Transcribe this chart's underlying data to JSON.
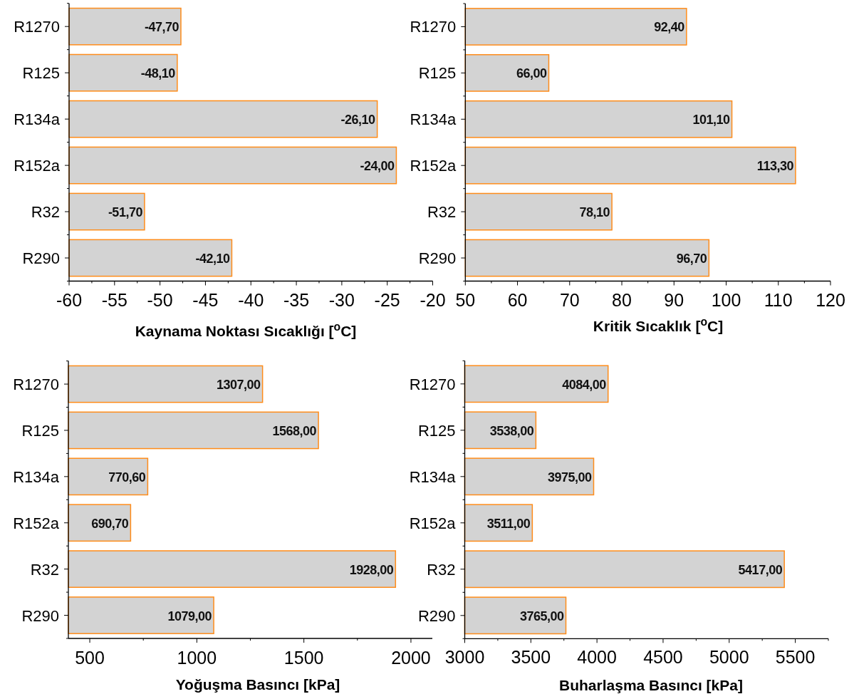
{
  "chart_data": [
    {
      "type": "bar",
      "orientation": "horizontal",
      "categories": [
        "R1270",
        "R125",
        "R134a",
        "R152a",
        "R32",
        "R290"
      ],
      "base": [
        -60,
        -60,
        -60,
        -60,
        -60,
        -60
      ],
      "values": [
        12.3,
        11.9,
        33.9,
        36.0,
        8.3,
        17.9
      ],
      "value_labels": [
        "-47,70",
        "-48,10",
        "-26,10",
        "-24,00",
        "-51,70",
        "-42,10"
      ],
      "color": "#d3d3d3",
      "xlabel": "Kaynama Noktası Sıcaklığı [$^{o}$C]",
      "xlim": [
        -60,
        -20
      ],
      "xticks": [
        -60,
        {
          "value": -57.5,
          "label": null
        },
        -55,
        {
          "value": -52.5,
          "label": null
        },
        -50,
        {
          "value": -47.5,
          "label": null
        },
        -45,
        {
          "value": -42.5,
          "label": null
        },
        -40,
        {
          "value": -37.5,
          "label": null
        },
        -35,
        {
          "value": -32.5,
          "label": null
        },
        -30,
        {
          "value": -27.5,
          "label": null
        },
        -25,
        {
          "value": -22.5,
          "label": null
        },
        -20
      ]
    },
    {
      "type": "bar",
      "orientation": "horizontal",
      "categories": [
        "R1270",
        "R125",
        "R134a",
        "R152a",
        "R32",
        "R290"
      ],
      "values": [
        92.4,
        66.0,
        101.1,
        113.3,
        78.1,
        96.7
      ],
      "value_labels": [
        "92,40",
        "66,00",
        "101,10",
        "113,30",
        "78,10",
        "96,70"
      ],
      "color": "#d3d3d3",
      "xlabel": "Kritik Sıcaklık [$^{o}$C]",
      "xlim": [
        50,
        120
      ],
      "xticks": [
        50,
        {
          "value": 55,
          "label": null
        },
        60,
        {
          "value": 65,
          "label": null
        },
        70,
        {
          "value": 75,
          "label": null
        },
        80,
        {
          "value": 85,
          "label": null
        },
        90,
        {
          "value": 95,
          "label": null
        },
        100,
        {
          "value": 105,
          "label": null
        },
        110,
        {
          "value": 115,
          "label": null
        },
        120
      ]
    },
    {
      "type": "bar",
      "orientation": "horizontal",
      "categories": [
        "R1270",
        "R125",
        "R134a",
        "R152a",
        "R32",
        "R290"
      ],
      "values": [
        1307,
        1568,
        770.6,
        690.7,
        1928,
        1079
      ],
      "value_labels": [
        "1307,00",
        "1568,00",
        "770,60",
        "690,70",
        "1928,00",
        "1079,00"
      ],
      "color": "#d3d3d3",
      "xlabel": "Yoğuşma Basıncı [kPa]",
      "xlim": [
        400,
        2100
      ],
      "xticks": [
        500,
        {
          "value": 750,
          "label": null
        },
        1000,
        {
          "value": 1250,
          "label": null
        },
        1500,
        {
          "value": 1750,
          "label": null
        },
        2000
      ]
    },
    {
      "type": "bar",
      "orientation": "horizontal",
      "categories": [
        "R1270",
        "R125",
        "R134a",
        "R152a",
        "R32",
        "R290"
      ],
      "values": [
        4084,
        3538,
        3975,
        3511,
        5417,
        3765
      ],
      "value_labels": [
        "4084,00",
        "3538,00",
        "3975,00",
        "3511,00",
        "5417,00",
        "3765,00"
      ],
      "color": "#d3d3d3",
      "xlabel": "Buharlaşma Basıncı [kPa]",
      "xlim": [
        3000,
        5750
      ],
      "xticks": [
        3000,
        {
          "value": 3250,
          "label": null
        },
        3500,
        {
          "value": 3750,
          "label": null
        },
        4000,
        {
          "value": 4250,
          "label": null
        },
        4500,
        {
          "value": 4750,
          "label": null
        },
        5000,
        {
          "value": 5250,
          "label": null
        },
        5500,
        {
          "value": 5750,
          "label": null
        }
      ]
    }
  ]
}
